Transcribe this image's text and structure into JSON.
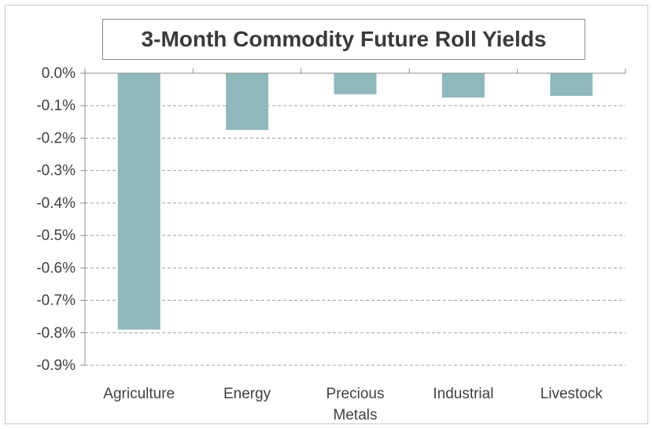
{
  "chart_data": {
    "type": "bar",
    "title": "3-Month Commodity Future Roll Yields",
    "categories": [
      [
        "Agriculture"
      ],
      [
        "Energy"
      ],
      [
        "Precious",
        "Metals"
      ],
      [
        "Industrial"
      ],
      [
        "Livestock"
      ]
    ],
    "values": [
      -0.79,
      -0.175,
      -0.065,
      -0.075,
      -0.07
    ],
    "ylim": [
      -0.9,
      0.0
    ],
    "yticks": [
      0.0,
      -0.1,
      -0.2,
      -0.3,
      -0.4,
      -0.5,
      -0.6,
      -0.7,
      -0.8,
      -0.9
    ],
    "ytick_labels": [
      "0.0%",
      "-0.1%",
      "-0.2%",
      "-0.3%",
      "-0.4%",
      "-0.5%",
      "-0.6%",
      "-0.7%",
      "-0.8%",
      "-0.9%"
    ],
    "xlabel": "",
    "ylabel": "",
    "grid": true,
    "bar_color": "#8fb8bd",
    "grid_color": "#a0a0a0"
  }
}
